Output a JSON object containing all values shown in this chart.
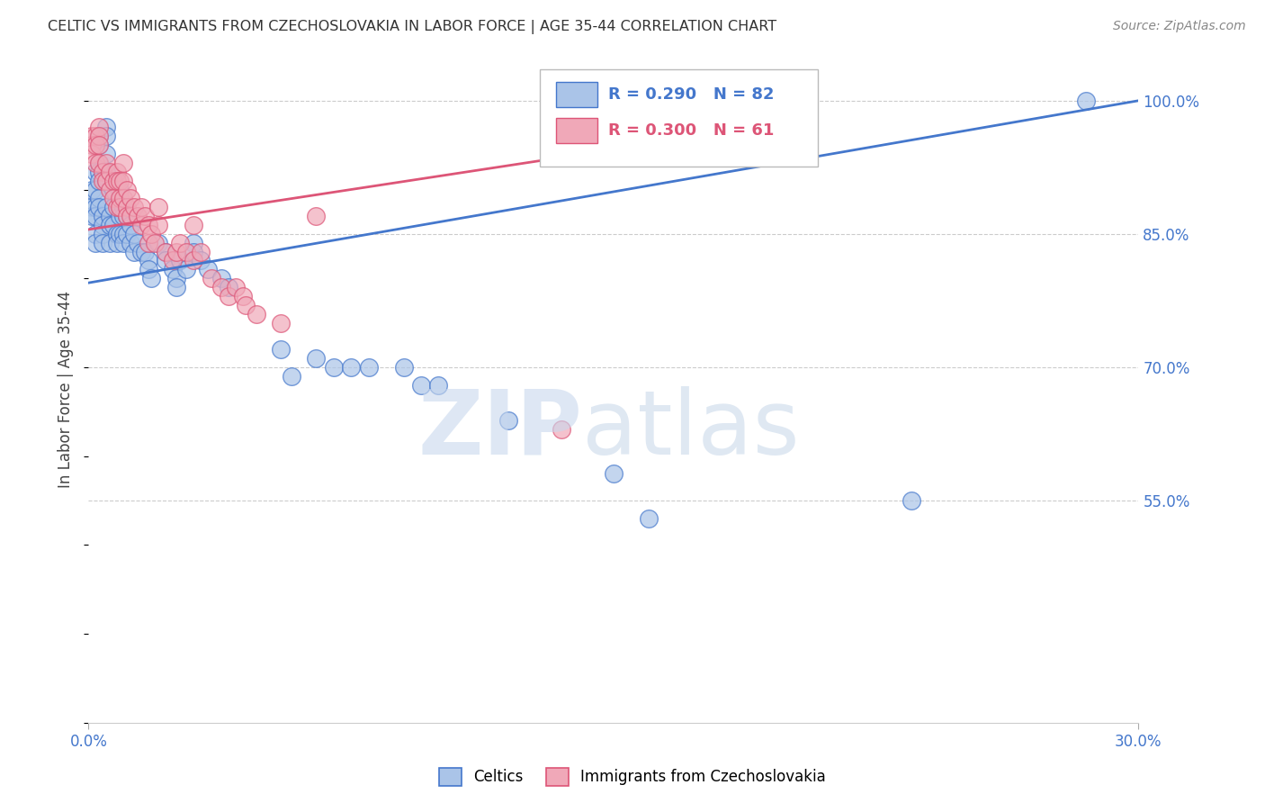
{
  "title": "CELTIC VS IMMIGRANTS FROM CZECHOSLOVAKIA IN LABOR FORCE | AGE 35-44 CORRELATION CHART",
  "source": "Source: ZipAtlas.com",
  "ylabel": "In Labor Force | Age 35-44",
  "background_color": "#ffffff",
  "plot_bg_color": "#ffffff",
  "xlim": [
    0.0,
    0.3
  ],
  "ylim": [
    0.3,
    1.05
  ],
  "grid_yticks": [
    0.55,
    0.7,
    0.85,
    1.0
  ],
  "grid_color": "#cccccc",
  "celtics_color": "#aac4e8",
  "czecho_color": "#f0a8b8",
  "trend_blue": "#4477cc",
  "trend_pink": "#dd5577",
  "blue_trend_x": [
    0.0,
    0.3
  ],
  "blue_trend_y": [
    0.795,
    1.0
  ],
  "pink_trend_x": [
    0.0,
    0.175
  ],
  "pink_trend_y": [
    0.855,
    0.96
  ],
  "celtics_x": [
    0.001,
    0.001,
    0.001,
    0.002,
    0.002,
    0.002,
    0.002,
    0.002,
    0.002,
    0.003,
    0.003,
    0.003,
    0.003,
    0.003,
    0.003,
    0.003,
    0.004,
    0.004,
    0.004,
    0.004,
    0.005,
    0.005,
    0.005,
    0.005,
    0.005,
    0.005,
    0.006,
    0.006,
    0.006,
    0.007,
    0.007,
    0.007,
    0.008,
    0.008,
    0.009,
    0.009,
    0.009,
    0.009,
    0.01,
    0.01,
    0.01,
    0.01,
    0.011,
    0.011,
    0.012,
    0.012,
    0.013,
    0.013,
    0.014,
    0.015,
    0.016,
    0.017,
    0.017,
    0.018,
    0.02,
    0.022,
    0.022,
    0.024,
    0.025,
    0.025,
    0.026,
    0.028,
    0.03,
    0.03,
    0.032,
    0.034,
    0.038,
    0.04,
    0.055,
    0.058,
    0.065,
    0.07,
    0.075,
    0.08,
    0.09,
    0.095,
    0.1,
    0.12,
    0.15,
    0.16,
    0.235,
    0.285
  ],
  "celtics_y": [
    0.88,
    0.9,
    0.87,
    0.92,
    0.9,
    0.88,
    0.87,
    0.85,
    0.84,
    0.96,
    0.95,
    0.93,
    0.92,
    0.91,
    0.89,
    0.88,
    0.87,
    0.86,
    0.85,
    0.84,
    0.97,
    0.96,
    0.94,
    0.92,
    0.91,
    0.88,
    0.87,
    0.86,
    0.84,
    0.9,
    0.88,
    0.86,
    0.85,
    0.84,
    0.9,
    0.88,
    0.87,
    0.85,
    0.88,
    0.87,
    0.85,
    0.84,
    0.87,
    0.85,
    0.86,
    0.84,
    0.85,
    0.83,
    0.84,
    0.83,
    0.83,
    0.82,
    0.81,
    0.8,
    0.84,
    0.83,
    0.82,
    0.81,
    0.8,
    0.79,
    0.82,
    0.81,
    0.84,
    0.83,
    0.82,
    0.81,
    0.8,
    0.79,
    0.72,
    0.69,
    0.71,
    0.7,
    0.7,
    0.7,
    0.7,
    0.68,
    0.68,
    0.64,
    0.58,
    0.53,
    0.55,
    1.0
  ],
  "czecho_x": [
    0.001,
    0.001,
    0.001,
    0.002,
    0.002,
    0.002,
    0.003,
    0.003,
    0.003,
    0.003,
    0.004,
    0.004,
    0.005,
    0.005,
    0.006,
    0.006,
    0.007,
    0.007,
    0.008,
    0.008,
    0.008,
    0.009,
    0.009,
    0.009,
    0.01,
    0.01,
    0.01,
    0.011,
    0.011,
    0.011,
    0.012,
    0.012,
    0.013,
    0.014,
    0.015,
    0.015,
    0.016,
    0.017,
    0.017,
    0.018,
    0.019,
    0.02,
    0.02,
    0.022,
    0.024,
    0.025,
    0.026,
    0.028,
    0.03,
    0.03,
    0.032,
    0.035,
    0.038,
    0.04,
    0.042,
    0.044,
    0.045,
    0.048,
    0.055,
    0.065,
    0.135
  ],
  "czecho_y": [
    0.96,
    0.95,
    0.94,
    0.96,
    0.95,
    0.93,
    0.97,
    0.96,
    0.95,
    0.93,
    0.92,
    0.91,
    0.93,
    0.91,
    0.92,
    0.9,
    0.91,
    0.89,
    0.92,
    0.91,
    0.88,
    0.91,
    0.89,
    0.88,
    0.93,
    0.91,
    0.89,
    0.9,
    0.88,
    0.87,
    0.89,
    0.87,
    0.88,
    0.87,
    0.88,
    0.86,
    0.87,
    0.86,
    0.84,
    0.85,
    0.84,
    0.88,
    0.86,
    0.83,
    0.82,
    0.83,
    0.84,
    0.83,
    0.86,
    0.82,
    0.83,
    0.8,
    0.79,
    0.78,
    0.79,
    0.78,
    0.77,
    0.76,
    0.75,
    0.87,
    0.63
  ]
}
